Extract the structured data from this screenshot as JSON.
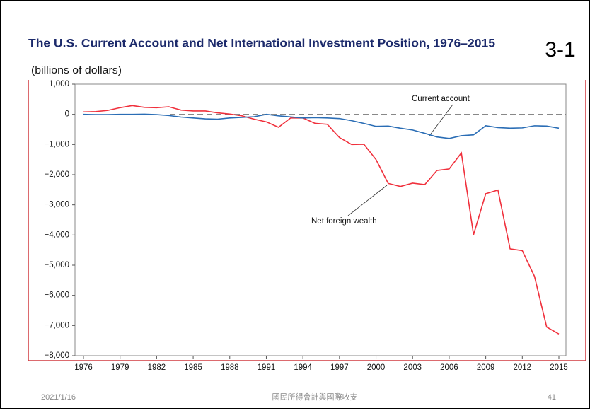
{
  "slide": {
    "number_label": "3-1",
    "date": "2021/1/16",
    "footer": "國民所得會計與國際收支",
    "page": "41"
  },
  "chart_data": {
    "type": "line",
    "title": "The U.S. Current Account and Net International Investment Position, 1976–2015",
    "subtitle": "(billions of dollars)",
    "x": [
      1976,
      1977,
      1978,
      1979,
      1980,
      1981,
      1982,
      1983,
      1984,
      1985,
      1986,
      1987,
      1988,
      1989,
      1990,
      1991,
      1992,
      1993,
      1994,
      1995,
      1996,
      1997,
      1998,
      1999,
      2000,
      2001,
      2002,
      2003,
      2004,
      2005,
      2006,
      2007,
      2008,
      2009,
      2010,
      2011,
      2012,
      2013,
      2014,
      2015
    ],
    "series": [
      {
        "name": "Current account",
        "color": "#2a6db5",
        "values": [
          0,
          -10,
          -10,
          0,
          0,
          5,
          -10,
          -40,
          -90,
          -120,
          -150,
          -160,
          -120,
          -100,
          -80,
          0,
          -50,
          -85,
          -120,
          -110,
          -120,
          -140,
          -210,
          -300,
          -400,
          -390,
          -460,
          -520,
          -630,
          -750,
          -800,
          -710,
          -680,
          -380,
          -440,
          -460,
          -450,
          -380,
          -390,
          -460
        ]
      },
      {
        "name": "Net foreign wealth",
        "color": "#f0303c",
        "values": [
          80,
          90,
          130,
          220,
          290,
          230,
          220,
          250,
          140,
          110,
          110,
          50,
          10,
          -50,
          -160,
          -250,
          -430,
          -120,
          -120,
          -300,
          -330,
          -770,
          -1000,
          -990,
          -1500,
          -2290,
          -2390,
          -2280,
          -2330,
          -1860,
          -1810,
          -1280,
          -3990,
          -2630,
          -2510,
          -4460,
          -4520,
          -5370,
          -7050,
          -7280
        ]
      }
    ],
    "xlim": [
      1976,
      2015
    ],
    "xticks": [
      1976,
      1979,
      1982,
      1985,
      1988,
      1991,
      1994,
      1997,
      2000,
      2003,
      2006,
      2009,
      2012,
      2015
    ],
    "ylim": [
      -8000,
      1000
    ],
    "yticks": [
      {
        "value": -8000,
        "label": "−8,000"
      },
      {
        "value": -7000,
        "label": "−7,000"
      },
      {
        "value": -6000,
        "label": "−6,000"
      },
      {
        "value": -5000,
        "label": "−5,000"
      },
      {
        "value": -4000,
        "label": "−4,000"
      },
      {
        "value": -3000,
        "label": "−3,000"
      },
      {
        "value": -2000,
        "label": "−2,000"
      },
      {
        "value": -1000,
        "label": "−1,000"
      },
      0,
      {
        "value": 1000,
        "label": "1,000"
      }
    ]
  }
}
